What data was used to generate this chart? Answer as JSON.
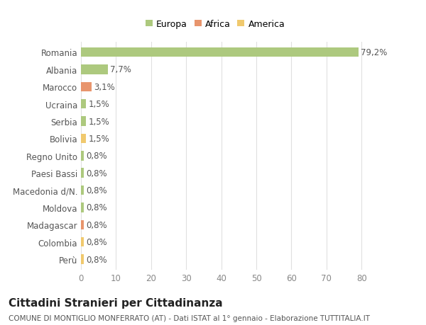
{
  "countries": [
    "Romania",
    "Albania",
    "Marocco",
    "Ucraina",
    "Serbia",
    "Bolivia",
    "Regno Unito",
    "Paesi Bassi",
    "Macedonia d/N.",
    "Moldova",
    "Madagascar",
    "Colombia",
    "Perù"
  ],
  "values": [
    79.2,
    7.7,
    3.1,
    1.5,
    1.5,
    1.5,
    0.8,
    0.8,
    0.8,
    0.8,
    0.8,
    0.8,
    0.8
  ],
  "labels": [
    "79,2%",
    "7,7%",
    "3,1%",
    "1,5%",
    "1,5%",
    "1,5%",
    "0,8%",
    "0,8%",
    "0,8%",
    "0,8%",
    "0,8%",
    "0,8%",
    "0,8%"
  ],
  "continents": [
    "Europa",
    "Europa",
    "Africa",
    "Europa",
    "Europa",
    "America",
    "Europa",
    "Europa",
    "Europa",
    "Europa",
    "Africa",
    "America",
    "America"
  ],
  "colors": {
    "Europa": "#adc97e",
    "Africa": "#e8956d",
    "America": "#f0c96e"
  },
  "legend_labels": [
    "Europa",
    "Africa",
    "America"
  ],
  "legend_colors": [
    "#adc97e",
    "#e8956d",
    "#f0c96e"
  ],
  "title": "Cittadini Stranieri per Cittadinanza",
  "subtitle": "COMUNE DI MONTIGLIO MONFERRATO (AT) - Dati ISTAT al 1° gennaio - Elaborazione TUTTITALIA.IT",
  "xlim": [
    0,
    85
  ],
  "xticks": [
    0,
    10,
    20,
    30,
    40,
    50,
    60,
    70,
    80
  ],
  "background_color": "#ffffff",
  "grid_color": "#e0e0e0",
  "bar_height": 0.55,
  "label_fontsize": 8.5,
  "tick_fontsize": 8.5,
  "title_fontsize": 11,
  "subtitle_fontsize": 7.5
}
